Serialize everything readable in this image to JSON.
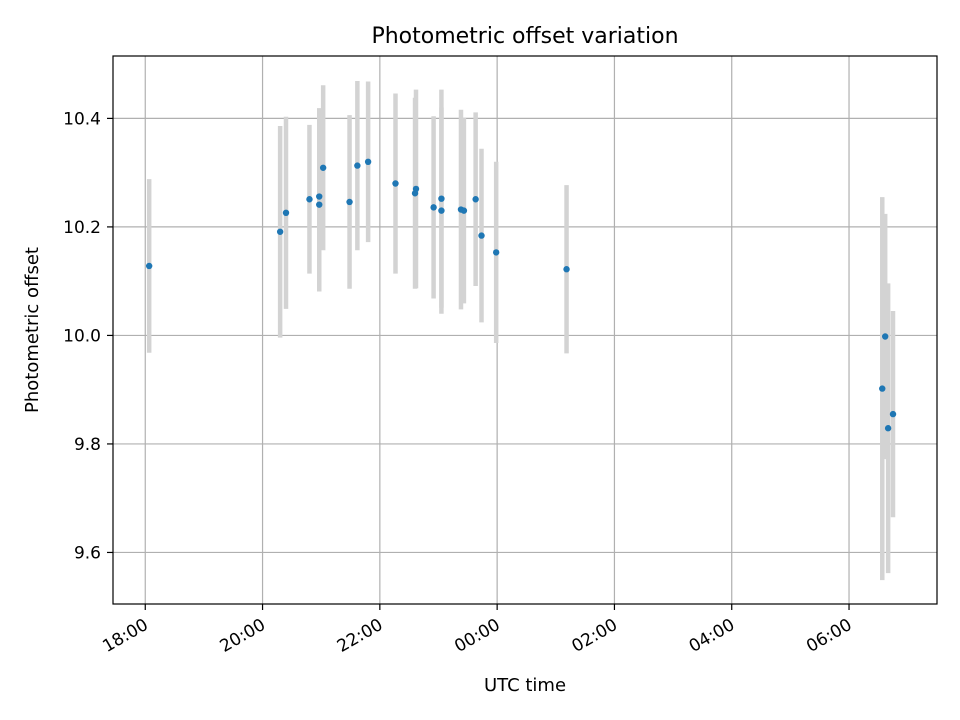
{
  "chart_data": {
    "type": "scatter",
    "title": "Photometric offset variation",
    "xlabel": "UTC time",
    "ylabel": "Photometric offset",
    "x_tick_labels": [
      "18:00",
      "20:00",
      "22:00",
      "00:00",
      "02:00",
      "04:00",
      "06:00"
    ],
    "x_tick_times": [
      "18:00",
      "20:00",
      "22:00",
      "00:00 +1d",
      "02:00 +1d",
      "04:00 +1d",
      "06:00 +1d"
    ],
    "y_ticks": [
      9.6,
      9.8,
      10.0,
      10.2,
      10.4
    ],
    "y_tick_labels": [
      "9.6",
      "9.8",
      "10.0",
      "10.2",
      "10.4"
    ],
    "xlim": [
      "17:27",
      "07:30 +1d"
    ],
    "ylim": [
      9.505,
      10.515
    ],
    "grid": true,
    "marker_color": "#1f77b4",
    "errorbar_color": "#d3d3d3",
    "points": [
      {
        "time": "18:04",
        "y": 10.128,
        "yerr": 0.16
      },
      {
        "time": "20:18",
        "y": 10.191,
        "yerr": 0.195
      },
      {
        "time": "20:24",
        "y": 10.226,
        "yerr": 0.177
      },
      {
        "time": "20:48",
        "y": 10.251,
        "yerr": 0.137
      },
      {
        "time": "20:58",
        "y": 10.241,
        "yerr": 0.16
      },
      {
        "time": "20:58",
        "y": 10.256,
        "yerr": 0.163
      },
      {
        "time": "21:02",
        "y": 10.309,
        "yerr": 0.152
      },
      {
        "time": "21:29",
        "y": 10.246,
        "yerr": 0.16
      },
      {
        "time": "21:37",
        "y": 10.313,
        "yerr": 0.156
      },
      {
        "time": "21:48",
        "y": 10.32,
        "yerr": 0.148
      },
      {
        "time": "22:16",
        "y": 10.28,
        "yerr": 0.166
      },
      {
        "time": "22:36",
        "y": 10.262,
        "yerr": 0.176
      },
      {
        "time": "22:37",
        "y": 10.27,
        "yerr": 0.183
      },
      {
        "time": "22:55",
        "y": 10.236,
        "yerr": 0.168
      },
      {
        "time": "23:03",
        "y": 10.23,
        "yerr": 0.19
      },
      {
        "time": "23:03",
        "y": 10.252,
        "yerr": 0.201
      },
      {
        "time": "23:23",
        "y": 10.232,
        "yerr": 0.184
      },
      {
        "time": "23:26",
        "y": 10.23,
        "yerr": 0.171
      },
      {
        "time": "23:38",
        "y": 10.251,
        "yerr": 0.16
      },
      {
        "time": "23:44",
        "y": 10.184,
        "yerr": 0.16
      },
      {
        "time": "23:59",
        "y": 10.153,
        "yerr": 0.167
      },
      {
        "time": "01:11 +1d",
        "y": 10.122,
        "yerr": 0.155
      },
      {
        "time": "06:34 +1d",
        "y": 9.902,
        "yerr": 0.353
      },
      {
        "time": "06:37 +1d",
        "y": 9.998,
        "yerr": 0.226
      },
      {
        "time": "06:40 +1d",
        "y": 9.829,
        "yerr": 0.267
      },
      {
        "time": "06:45 +1d",
        "y": 9.855,
        "yerr": 0.19
      }
    ]
  }
}
